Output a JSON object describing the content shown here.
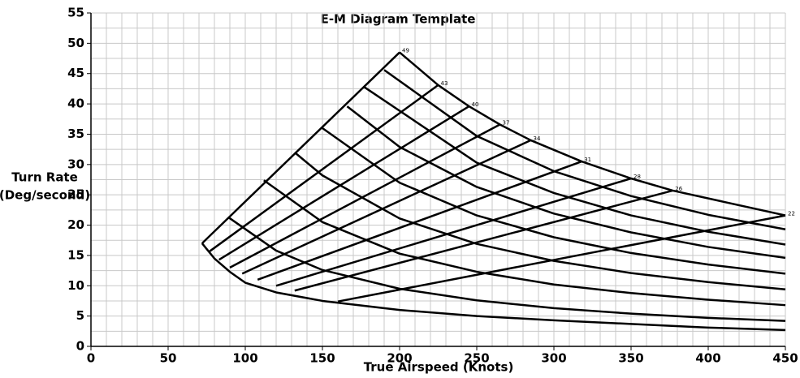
{
  "chart_data": {
    "type": "line",
    "title": "E-M Diagram Template",
    "xlabel": "True Airspeed (Knots)",
    "ylabel": [
      "Turn Rate",
      "(Deg/second)"
    ],
    "xlim": [
      0,
      450
    ],
    "xticks": [
      0,
      50,
      100,
      150,
      200,
      250,
      300,
      350,
      400,
      450
    ],
    "ylim": [
      0,
      55
    ],
    "yticks": [
      0,
      5,
      10,
      15,
      20,
      25,
      30,
      35,
      40,
      45,
      50,
      55
    ],
    "grid": true,
    "minor_grid": {
      "x": 10,
      "y": 2.5
    },
    "series": [
      {
        "color": "#000000",
        "x": [
          200,
          225,
          245,
          265,
          285,
          318,
          350,
          377,
          450
        ],
        "values": [
          48.5,
          43.1,
          39.6,
          36.6,
          34,
          30.5,
          27.7,
          25.7,
          21.6
        ]
      },
      {
        "color": "#000000",
        "x": [
          72,
          200
        ],
        "values": [
          17,
          48.5
        ]
      },
      {
        "color": "#000000",
        "x": [
          190,
          250,
          300,
          350,
          400,
          450
        ],
        "values": [
          45.6,
          34.7,
          28.9,
          24.8,
          21.7,
          19.3
        ]
      },
      {
        "color": "#000000",
        "x": [
          177,
          250,
          300,
          350,
          400,
          450
        ],
        "values": [
          42.8,
          30.3,
          25.3,
          21.6,
          18.9,
          16.8
        ]
      },
      {
        "color": "#000000",
        "x": [
          166,
          200,
          250,
          300,
          350,
          400,
          450
        ],
        "values": [
          39.6,
          32.9,
          26.3,
          21.9,
          18.8,
          16.4,
          14.6
        ]
      },
      {
        "color": "#000000",
        "x": [
          150,
          200,
          250,
          300,
          350,
          400,
          450
        ],
        "values": [
          36,
          27,
          21.6,
          18,
          15.4,
          13.5,
          12
        ]
      },
      {
        "color": "#000000",
        "x": [
          132,
          150,
          200,
          250,
          300,
          350,
          400,
          450
        ],
        "values": [
          32,
          28.2,
          21.1,
          16.9,
          14.1,
          12.1,
          10.6,
          9.4
        ]
      },
      {
        "color": "#000000",
        "x": [
          112,
          150,
          200,
          250,
          300,
          350,
          400,
          450
        ],
        "values": [
          27.4,
          20.5,
          15.3,
          12.3,
          10.2,
          8.8,
          7.7,
          6.8
        ]
      },
      {
        "color": "#000000",
        "x": [
          89,
          120,
          150,
          200,
          250,
          300,
          350,
          400,
          450
        ],
        "values": [
          21.3,
          15.8,
          12.6,
          9.5,
          7.6,
          6.3,
          5.4,
          4.7,
          4.2
        ]
      },
      {
        "color": "#000000",
        "x": [
          72,
          80,
          90,
          100,
          120,
          150,
          200,
          250,
          300,
          350,
          400,
          450
        ],
        "values": [
          17,
          14.5,
          12.3,
          10.5,
          8.9,
          7.5,
          6,
          5,
          4.3,
          3.7,
          3.1,
          2.7
        ]
      },
      {
        "color": "#000000",
        "x": [
          77,
          225
        ],
        "values": [
          15.7,
          43.1
        ]
      },
      {
        "color": "#000000",
        "x": [
          83,
          245
        ],
        "values": [
          14.3,
          39.6
        ]
      },
      {
        "color": "#000000",
        "x": [
          90,
          265
        ],
        "values": [
          13,
          36.6
        ]
      },
      {
        "color": "#000000",
        "x": [
          98,
          285
        ],
        "values": [
          12,
          34
        ]
      },
      {
        "color": "#000000",
        "x": [
          108,
          318
        ],
        "values": [
          11,
          30.5
        ]
      },
      {
        "color": "#000000",
        "x": [
          120,
          350
        ],
        "values": [
          10,
          27.7
        ]
      },
      {
        "color": "#000000",
        "x": [
          132,
          377
        ],
        "values": [
          9.2,
          25.7
        ]
      },
      {
        "color": "#000000",
        "x": [
          160,
          450
        ],
        "values": [
          7.4,
          21.6
        ]
      }
    ],
    "annotations": [
      {
        "x": 200,
        "y": 48.5,
        "text": "49"
      },
      {
        "x": 225,
        "y": 43.1,
        "text": "43"
      },
      {
        "x": 245,
        "y": 39.6,
        "text": "40"
      },
      {
        "x": 265,
        "y": 36.6,
        "text": "37"
      },
      {
        "x": 285,
        "y": 34,
        "text": "34"
      },
      {
        "x": 318,
        "y": 30.5,
        "text": "31"
      },
      {
        "x": 350,
        "y": 27.7,
        "text": "28"
      },
      {
        "x": 377,
        "y": 25.7,
        "text": "26"
      },
      {
        "x": 450,
        "y": 21.6,
        "text": "22"
      }
    ]
  }
}
